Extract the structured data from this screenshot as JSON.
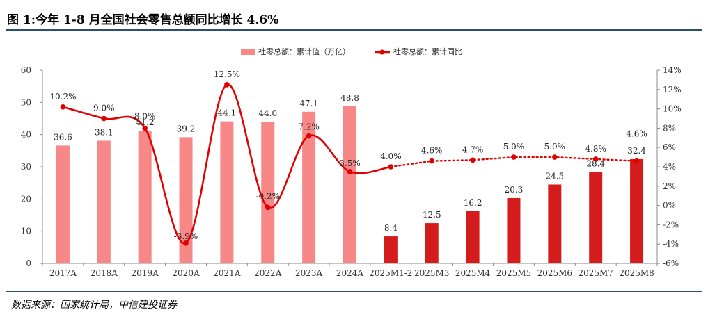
{
  "title": "图 1:今年 1-8 月全国社会零售总额同比增长 4.6%",
  "source": "数据来源：国家统计局，中信建投证券",
  "colors": {
    "bar_historic": "#f88787",
    "bar_current": "#d51c1c",
    "line": "#e00000",
    "axis": "#888888",
    "rule": "#2a4f6f"
  },
  "chart_data": {
    "type": "bar+line",
    "categories": [
      "2017A",
      "2018A",
      "2019A",
      "2020A",
      "2021A",
      "2022A",
      "2023A",
      "2024A",
      "2025M1-2",
      "2025M3",
      "2025M4",
      "2025M5",
      "2025M6",
      "2025M7",
      "2025M8"
    ],
    "series": [
      {
        "name": "社零总额：累计值（万亿）",
        "type": "bar",
        "axis": "left",
        "values": [
          36.6,
          38.1,
          41.2,
          39.2,
          44.1,
          44.0,
          47.1,
          48.8,
          8.4,
          12.5,
          16.2,
          20.3,
          24.5,
          28.4,
          32.4
        ],
        "labels": [
          "36.6",
          "38.1",
          "41.2",
          "39.2",
          "44.1",
          "44.0",
          "47.1",
          "48.8",
          "8.4",
          "12.5",
          "16.2",
          "20.3",
          "24.5",
          "28.4",
          "32.4"
        ]
      },
      {
        "name": "社零总额：累计同比",
        "type": "line",
        "axis": "right",
        "values": [
          10.2,
          9.0,
          8.0,
          -3.9,
          12.5,
          -0.2,
          7.2,
          3.5,
          4.0,
          4.6,
          4.7,
          5.0,
          5.0,
          4.8,
          4.6
        ],
        "labels": [
          "10.2%",
          "9.0%",
          "8.0%",
          "-3.9%",
          "12.5%",
          "-0.2%",
          "7.2%",
          "3.5%",
          "4.0%",
          "4.6%",
          "4.7%",
          "5.0%",
          "5.0%",
          "4.8%",
          "4.6%"
        ]
      }
    ],
    "left_axis": {
      "min": 0,
      "max": 60,
      "ticks": [
        "0",
        "10",
        "20",
        "30",
        "40",
        "50",
        "60"
      ]
    },
    "right_axis": {
      "min": -6,
      "max": 14,
      "ticks": [
        "-6%",
        "-4%",
        "-2%",
        "0%",
        "2%",
        "4%",
        "6%",
        "8%",
        "10%",
        "12%",
        "14%"
      ]
    },
    "annual_count": 8,
    "legend_position": "top-center",
    "grid": false
  }
}
